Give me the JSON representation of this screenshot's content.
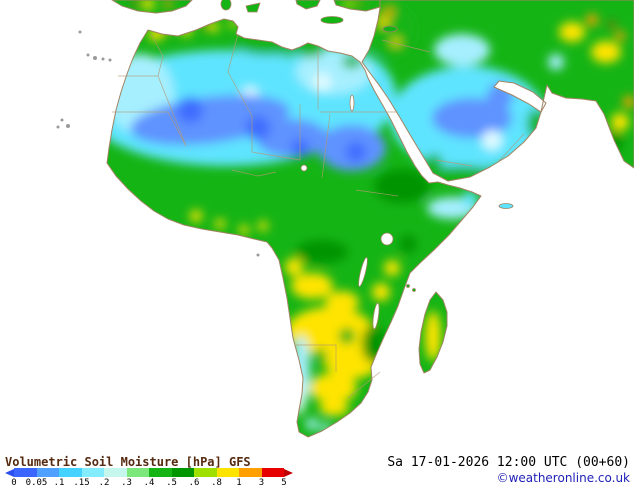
{
  "footer": {
    "title": "Volumetric Soil Moisture [hPa] GFS",
    "datetime": "Sa 17-01-2026 12:00 UTC (00+60)",
    "copyright": "©weatheronline.co.uk"
  },
  "colors": {
    "title": "#552a10",
    "datetime": "#000000",
    "copyright": "#2121b8"
  },
  "legend": {
    "ticks": [
      "0",
      "0.05",
      ".1",
      ".15",
      ".2",
      ".3",
      ".4",
      ".5",
      ".6",
      ".8",
      "1",
      "3",
      "5"
    ],
    "segment_colors": [
      "#3a66ff",
      "#4fa0ff",
      "#45d2ff",
      "#84ecff",
      "#c6f7ee",
      "#7ce87c",
      "#15b415",
      "#009600",
      "#a0e000",
      "#ffe400",
      "#ffa000",
      "#e60000"
    ],
    "left_arrow_color": "#2a50f0",
    "right_arrow_color": "#c00000"
  },
  "map": {
    "ocean_color": "#ffffff",
    "coastline_color": "#a08464",
    "border_color": "#b49a74",
    "island_color": "#9a9a9a",
    "palette": {
      "deep_blue": "#3f6dff",
      "blue": "#5f93ff",
      "cyan": "#5ee4ff",
      "light_cyan": "#a6efff",
      "pale": "#dffbff",
      "green": "#15b415",
      "dark_green": "#009400",
      "yellow": "#ffe400",
      "orange": "#ffa000",
      "red": "#e63200"
    }
  }
}
